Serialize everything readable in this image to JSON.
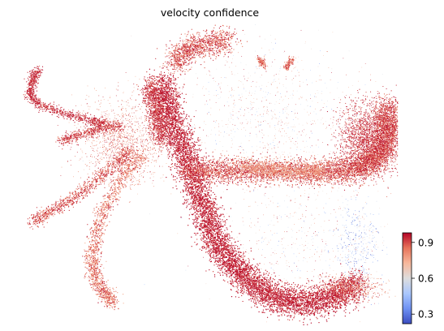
{
  "title": "velocity confidence",
  "chart_data": {
    "type": "scatter",
    "title": "velocity confidence",
    "xlabel": "",
    "ylabel": "",
    "axes_visible": false,
    "grid": false,
    "legend": "none",
    "colormap": {
      "name": "coolwarm",
      "stops": [
        "#3b4cc0",
        "#6f92f3",
        "#aac7fd",
        "#dddddd",
        "#f7b89c",
        "#e7745b",
        "#b40426"
      ],
      "range": [
        0.22,
        0.98
      ],
      "ticks": [
        0.3,
        0.6,
        0.9
      ],
      "tick_labels": [
        "0.3",
        "0.6",
        "0.9"
      ],
      "placement": "right-bottom"
    },
    "points_summary": "dense point cloud of cells colored mostly high confidence (red, 0.85–0.98) with sparse low-confidence (blue) points in the right basin"
  }
}
